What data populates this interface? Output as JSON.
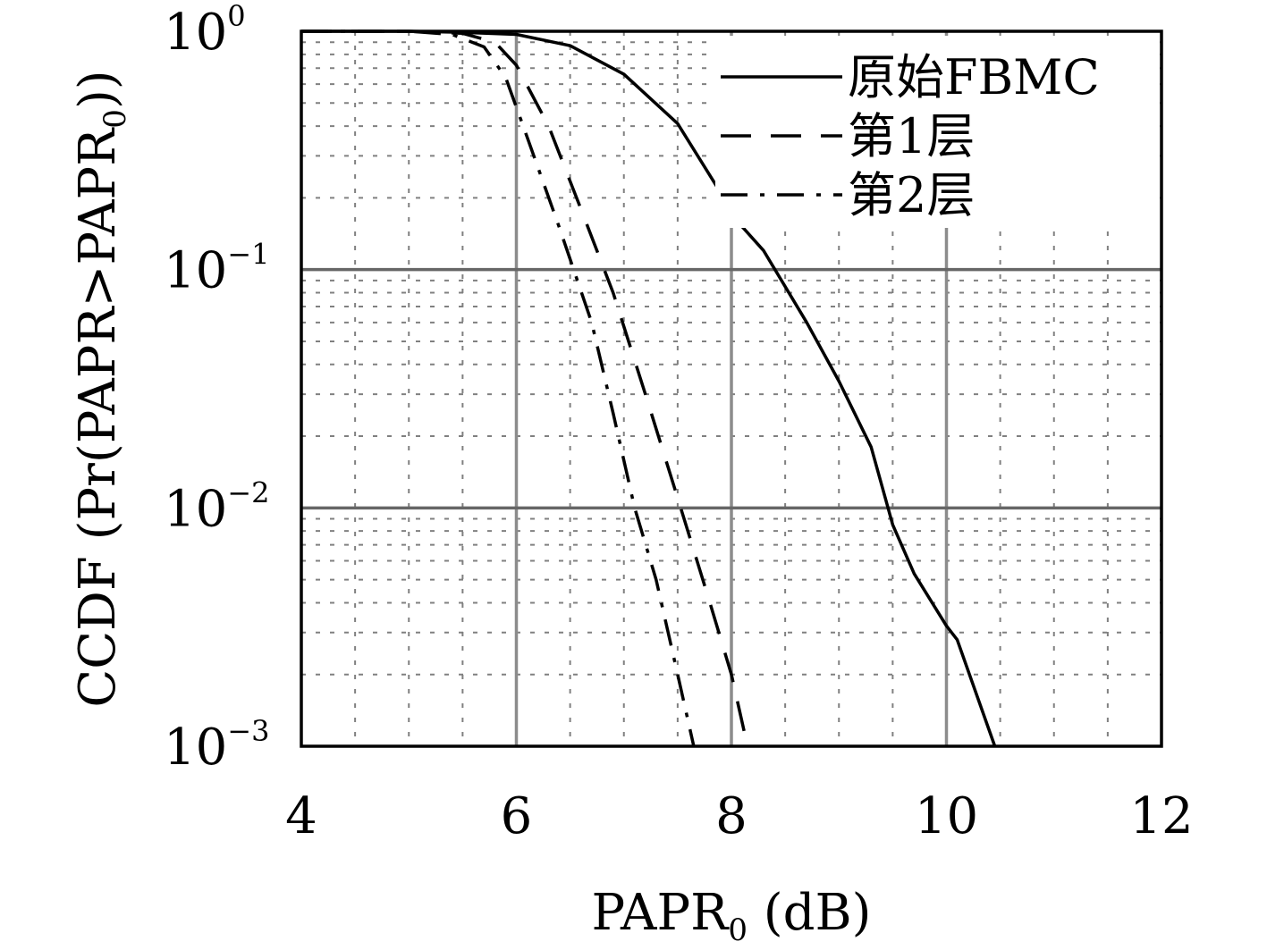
{
  "chart_data": {
    "type": "line",
    "title": "",
    "xlabel": {
      "main": "PAPR",
      "sub": "0",
      "suffix": " (dB)"
    },
    "ylabel": {
      "prefix": "CCDF (Pr(PAPR>PAPR",
      "sub": "0",
      "suffix": "))"
    },
    "x_scale": "linear",
    "y_scale": "log",
    "xlim": [
      4,
      12
    ],
    "ylim": [
      0.001,
      1
    ],
    "x_ticks": [
      4,
      6,
      8,
      10,
      12
    ],
    "x_tick_labels": [
      "4",
      "6",
      "8",
      "10",
      "12"
    ],
    "y_ticks": [
      0.001,
      0.01,
      0.1,
      1
    ],
    "y_tick_labels": [
      {
        "base": "10",
        "exp": "−3"
      },
      {
        "base": "10",
        "exp": "−2"
      },
      {
        "base": "10",
        "exp": "−1"
      },
      {
        "base": "10",
        "exp": "0"
      }
    ],
    "grid": true,
    "legend_position": "top-right",
    "series": [
      {
        "name": "原始FBMC",
        "style": "solid",
        "x": [
          4.0,
          5.0,
          5.5,
          6.0,
          6.5,
          7.0,
          7.5,
          7.9,
          8.0,
          8.3,
          8.7,
          9.0,
          9.3,
          9.5,
          9.7,
          10.0,
          10.1,
          10.45
        ],
        "y": [
          1.0,
          1.0,
          0.99,
          0.97,
          0.87,
          0.66,
          0.41,
          0.21,
          0.17,
          0.12,
          0.06,
          0.034,
          0.018,
          0.0085,
          0.0053,
          0.0032,
          0.0028,
          0.001
        ]
      },
      {
        "name": "第1层",
        "style": "dashed",
        "x": [
          4.0,
          5.0,
          5.5,
          5.8,
          6.0,
          6.3,
          6.6,
          6.9,
          7.2,
          7.5,
          7.8,
          8.0,
          8.15
        ],
        "y": [
          1.0,
          1.0,
          0.98,
          0.9,
          0.72,
          0.4,
          0.18,
          0.08,
          0.03,
          0.011,
          0.004,
          0.002,
          0.001
        ]
      },
      {
        "name": "第2层",
        "style": "dashdot",
        "x": [
          4.0,
          5.0,
          5.4,
          5.7,
          5.9,
          6.1,
          6.4,
          6.7,
          6.9,
          7.1,
          7.3,
          7.5,
          7.65
        ],
        "y": [
          1.0,
          1.0,
          0.97,
          0.86,
          0.64,
          0.36,
          0.15,
          0.06,
          0.025,
          0.01,
          0.005,
          0.002,
          0.001
        ]
      }
    ]
  }
}
